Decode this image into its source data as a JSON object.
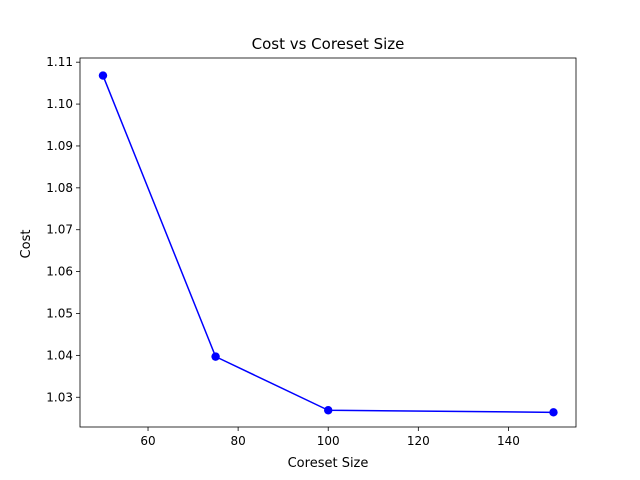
{
  "chart_data": {
    "type": "line",
    "title": "Cost vs Coreset Size",
    "xlabel": "Coreset Size",
    "ylabel": "Cost",
    "x": [
      50,
      75,
      100,
      150
    ],
    "series": [
      {
        "values": [
          1.1068,
          1.0397,
          1.0269,
          1.0264
        ],
        "color": "#0000ff",
        "marker": "circle"
      }
    ],
    "xlim": [
      44.9,
      155.0
    ],
    "ylim": [
      1.0229,
      1.111
    ],
    "xticks": [
      60,
      80,
      100,
      120,
      140
    ],
    "yticks": [
      1.03,
      1.04,
      1.05,
      1.06,
      1.07,
      1.08,
      1.09,
      1.1,
      1.11
    ],
    "xtick_labels": [
      "60",
      "80",
      "100",
      "120",
      "140"
    ],
    "ytick_labels": [
      "1.03",
      "1.04",
      "1.05",
      "1.06",
      "1.07",
      "1.08",
      "1.09",
      "1.10",
      "1.11"
    ],
    "grid": false,
    "legend": "none"
  }
}
